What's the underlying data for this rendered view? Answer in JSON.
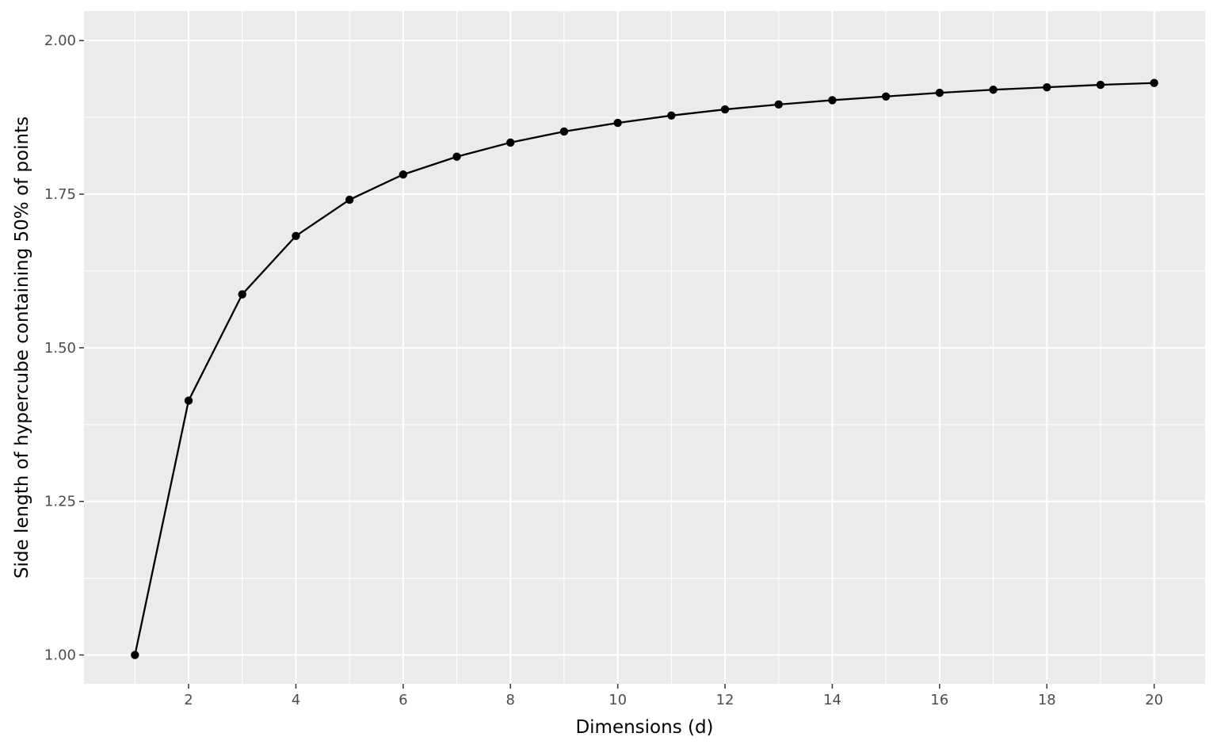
{
  "chart_data": {
    "type": "line",
    "title": "",
    "xlabel": "Dimensions (d)",
    "ylabel": "Side length of hypercube containing 50% of points",
    "x": [
      1,
      2,
      3,
      4,
      5,
      6,
      7,
      8,
      9,
      10,
      11,
      12,
      13,
      14,
      15,
      16,
      17,
      18,
      19,
      20
    ],
    "series": [
      {
        "values": [
          1.0,
          1.414,
          1.587,
          1.682,
          1.741,
          1.782,
          1.811,
          1.834,
          1.852,
          1.866,
          1.878,
          1.888,
          1.896,
          1.903,
          1.909,
          1.915,
          1.92,
          1.924,
          1.928,
          1.931
        ],
        "color": "#000000"
      }
    ],
    "xlim": [
      0.05,
      20.95
    ],
    "ylim": [
      0.953,
      2.048
    ],
    "x_ticks": [
      2,
      4,
      6,
      8,
      10,
      12,
      14,
      16,
      18,
      20
    ],
    "x_tick_labels": [
      "2",
      "4",
      "6",
      "8",
      "10",
      "12",
      "14",
      "16",
      "18",
      "20"
    ],
    "y_ticks": [
      1.0,
      1.25,
      1.5,
      1.75,
      2.0
    ],
    "y_tick_labels": [
      "1.00",
      "1.25",
      "1.50",
      "1.75",
      "2.00"
    ],
    "grid": true,
    "legend": "none"
  }
}
